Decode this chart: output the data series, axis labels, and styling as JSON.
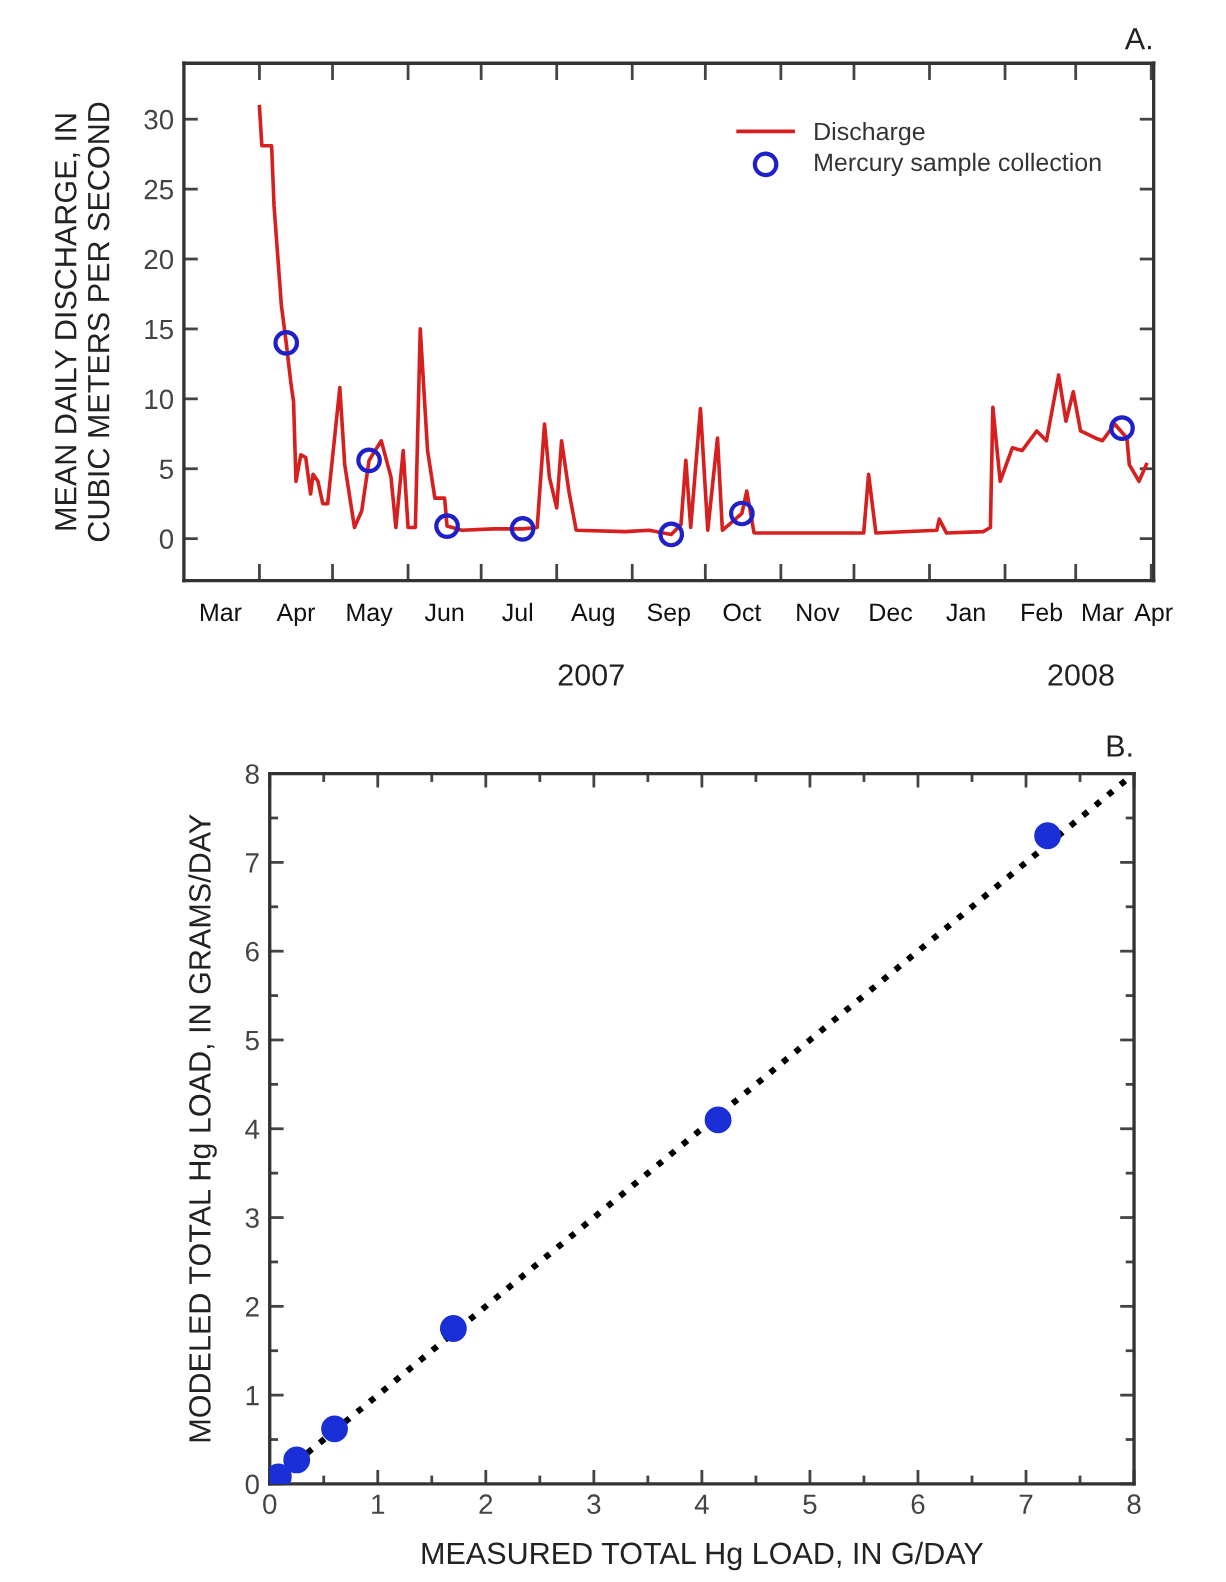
{
  "chart_data": [
    {
      "type": "line",
      "ylabel": "MEAN DAILY DISCHARGE, IN\nCUBIC METERS PER SECOND",
      "xlim": [
        "2007-03-01",
        "2008-04-02"
      ],
      "ylim": [
        -3,
        34
      ],
      "yticks": [
        0,
        5,
        10,
        15,
        20,
        25,
        30
      ],
      "xticks": [
        {
          "value": "2007-04-01",
          "label": null
        },
        {
          "value": "2007-05-01",
          "label": null
        },
        {
          "value": "2007-06-01",
          "label": null
        },
        {
          "value": "2007-07-01",
          "label": null
        },
        {
          "value": "2007-08-01",
          "label": null
        },
        {
          "value": "2007-09-01",
          "label": null
        },
        {
          "value": "2007-10-01",
          "label": null
        },
        {
          "value": "2007-11-01",
          "label": null
        },
        {
          "value": "2007-12-01",
          "label": null
        },
        {
          "value": "2008-01-01",
          "label": null
        },
        {
          "value": "2008-02-01",
          "label": null
        },
        {
          "value": "2008-03-01",
          "label": null
        },
        {
          "value": "2008-04-01",
          "label": null
        },
        {
          "value": "2007-03-16",
          "label": "Mar"
        },
        {
          "value": "2007-04-16",
          "label": "Apr"
        },
        {
          "value": "2007-05-16",
          "label": "May"
        },
        {
          "value": "2007-06-16",
          "label": "Jun"
        },
        {
          "value": "2007-07-16",
          "label": "Jul"
        },
        {
          "value": "2007-08-16",
          "label": "Aug"
        },
        {
          "value": "2007-09-16",
          "label": "Sep"
        },
        {
          "value": "2007-10-16",
          "label": "Oct"
        },
        {
          "value": "2007-11-16",
          "label": "Nov"
        },
        {
          "value": "2007-12-16",
          "label": "Dec"
        },
        {
          "value": "2008-01-16",
          "label": "Jan"
        },
        {
          "value": "2008-02-16",
          "label": "Feb"
        },
        {
          "value": "2008-03-12",
          "label": "Mar"
        },
        {
          "value": "2008-04-02",
          "label": "Apr"
        }
      ],
      "legend": "top right",
      "grid": false,
      "annotations": [
        "A.",
        "2007",
        "2008"
      ],
      "series": [
        {
          "name": "Discharge",
          "type": "line",
          "color": "#d62020",
          "marker": "none",
          "line_style": "solid",
          "x": [
            "2007-04-01",
            "2007-04-02",
            "2007-04-06",
            "2007-04-07",
            "2007-04-10",
            "2007-04-12",
            "2007-04-14",
            "2007-04-15",
            "2007-04-16",
            "2007-04-18",
            "2007-04-20",
            "2007-04-22",
            "2007-04-23",
            "2007-04-25",
            "2007-04-27",
            "2007-04-29",
            "2007-05-04",
            "2007-05-06",
            "2007-05-10",
            "2007-05-13",
            "2007-05-16",
            "2007-05-21",
            "2007-05-25",
            "2007-05-27",
            "2007-05-30",
            "2007-06-01",
            "2007-06-04",
            "2007-06-06",
            "2007-06-09",
            "2007-06-12",
            "2007-06-16",
            "2007-06-17",
            "2007-06-23",
            "2007-07-06",
            "2007-07-18",
            "2007-07-24",
            "2007-07-27",
            "2007-07-29",
            "2007-08-01",
            "2007-08-03",
            "2007-08-06",
            "2007-08-09",
            "2007-08-29",
            "2007-09-08",
            "2007-09-17",
            "2007-09-21",
            "2007-09-23",
            "2007-09-25",
            "2007-09-29",
            "2007-10-02",
            "2007-10-06",
            "2007-10-08",
            "2007-10-16",
            "2007-10-18",
            "2007-10-21",
            "2007-11-19",
            "2007-12-05",
            "2007-12-07",
            "2007-12-10",
            "2008-01-04",
            "2008-01-05",
            "2008-01-08",
            "2008-01-23",
            "2008-01-26",
            "2008-01-27",
            "2008-01-30",
            "2008-02-04",
            "2008-02-08",
            "2008-02-14",
            "2008-02-18",
            "2008-02-23",
            "2008-02-26",
            "2008-02-29",
            "2008-03-03",
            "2008-03-09",
            "2008-03-12",
            "2008-03-17",
            "2008-03-22",
            "2008-03-23",
            "2008-03-27",
            "2008-03-30"
          ],
          "values": [
            30.9,
            28.1,
            28.1,
            23.8,
            16.7,
            14.0,
            11.0,
            9.8,
            4.1,
            6.0,
            5.8,
            3.2,
            4.6,
            4.1,
            2.5,
            2.5,
            10.8,
            5.3,
            0.8,
            2.0,
            5.6,
            7.0,
            4.4,
            0.8,
            6.3,
            0.8,
            0.8,
            15.0,
            6.3,
            2.9,
            2.9,
            0.9,
            0.6,
            0.7,
            0.7,
            0.8,
            8.2,
            4.4,
            2.2,
            7.0,
            3.4,
            0.6,
            0.5,
            0.6,
            0.3,
            1.0,
            5.6,
            0.8,
            9.3,
            0.6,
            7.2,
            0.6,
            1.8,
            3.4,
            0.4,
            0.4,
            0.4,
            4.6,
            0.4,
            0.6,
            1.4,
            0.4,
            0.5,
            0.8,
            9.4,
            4.1,
            6.5,
            6.3,
            7.7,
            7.0,
            11.7,
            8.4,
            10.5,
            7.7,
            7.2,
            7.0,
            8.2,
            7.2,
            5.3,
            4.1,
            5.3
          ]
        },
        {
          "name": "Mercury sample collection",
          "type": "scatter",
          "color": "#2020c8",
          "marker": "circle",
          "x": [
            "2007-04-12",
            "2007-05-16",
            "2007-06-17",
            "2007-07-18",
            "2007-09-17",
            "2007-10-16",
            "2008-03-20"
          ],
          "values": [
            14.0,
            5.6,
            0.9,
            0.7,
            0.3,
            1.8,
            7.9
          ]
        }
      ]
    },
    {
      "type": "scatter",
      "xlabel": "MEASURED TOTAL Hg LOAD, IN G/DAY",
      "ylabel": "MODELED TOTAL Hg LOAD, IN GRAMS/DAY",
      "xlim": [
        0,
        8
      ],
      "ylim": [
        0,
        8
      ],
      "xticks": [
        0,
        {
          "value": 0.5,
          "label": null
        },
        1,
        {
          "value": 1.5,
          "label": null
        },
        2,
        {
          "value": 2.5,
          "label": null
        },
        3,
        {
          "value": 3.5,
          "label": null
        },
        4,
        {
          "value": 4.5,
          "label": null
        },
        5,
        {
          "value": 5.5,
          "label": null
        },
        6,
        {
          "value": 6.5,
          "label": null
        },
        7,
        {
          "value": 7.5,
          "label": null
        },
        8
      ],
      "yticks": [
        0,
        {
          "value": 0.5,
          "label": null
        },
        1,
        {
          "value": 1.5,
          "label": null
        },
        2,
        {
          "value": 2.5,
          "label": null
        },
        3,
        {
          "value": 3.5,
          "label": null
        },
        4,
        {
          "value": 4.5,
          "label": null
        },
        5,
        {
          "value": 5.5,
          "label": null
        },
        6,
        {
          "value": 6.5,
          "label": null
        },
        7,
        {
          "value": 7.5,
          "label": null
        },
        8
      ],
      "legend": false,
      "grid": false,
      "annotations": [
        "B."
      ],
      "series": [
        {
          "type": "line",
          "color": "#000000",
          "marker": "none",
          "line_style": "dotted",
          "x": [
            0,
            8
          ],
          "values": [
            0,
            8
          ]
        },
        {
          "type": "scatter",
          "color": "#1a2fd6",
          "marker": "circle",
          "x": [
            0.08,
            0.25,
            0.6,
            1.7,
            4.15,
            7.2
          ],
          "values": [
            0.08,
            0.27,
            0.62,
            1.75,
            4.1,
            7.3
          ]
        }
      ]
    }
  ]
}
